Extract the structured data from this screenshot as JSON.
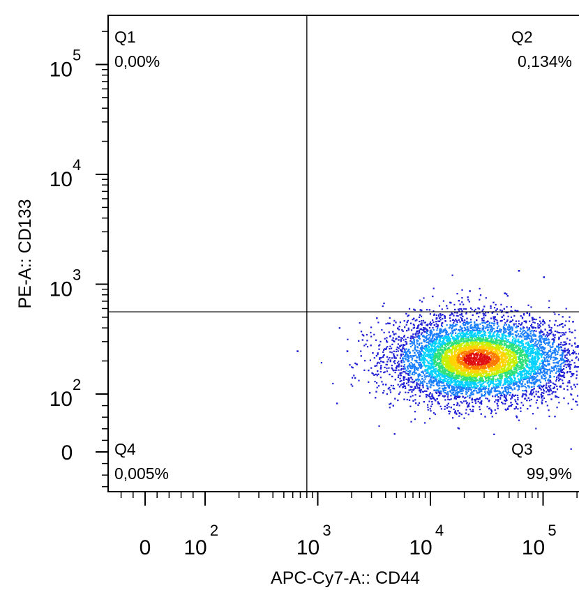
{
  "chart_data": {
    "type": "scatter",
    "subtype": "flow-cytometry-pseudocolor-density",
    "xlabel": "APC-Cy7-A:: CD44",
    "ylabel": "PE-A:: CD133",
    "x_scale": "biexponential",
    "y_scale": "biexponential",
    "x_ticks": [
      {
        "value": 0,
        "base": "0",
        "exp": ""
      },
      {
        "value": 100,
        "base": "10",
        "exp": "2"
      },
      {
        "value": 1000,
        "base": "10",
        "exp": "3"
      },
      {
        "value": 10000,
        "base": "10",
        "exp": "4"
      },
      {
        "value": 100000,
        "base": "10",
        "exp": "5"
      }
    ],
    "y_ticks": [
      {
        "value": 0,
        "base": "0",
        "exp": ""
      },
      {
        "value": 100,
        "base": "10",
        "exp": "2"
      },
      {
        "value": 1000,
        "base": "10",
        "exp": "3"
      },
      {
        "value": 10000,
        "base": "10",
        "exp": "4"
      },
      {
        "value": 100000,
        "base": "10",
        "exp": "5"
      }
    ],
    "gate": {
      "x": 800,
      "y": 560
    },
    "quadrants": [
      {
        "name": "Q1",
        "percent": "0,00%",
        "position": "top-left"
      },
      {
        "name": "Q2",
        "percent": "0,134%",
        "position": "top-right"
      },
      {
        "name": "Q3",
        "percent": "99,9%",
        "position": "bottom-right"
      },
      {
        "name": "Q4",
        "percent": "0,005%",
        "position": "bottom-left"
      }
    ],
    "population": {
      "center_x": 25000,
      "center_y": 210,
      "x_range": [
        4000,
        160000
      ],
      "y_range": [
        75,
        550
      ],
      "approx_events": 9000
    },
    "outliers": [
      {
        "x": 650,
        "y": 250
      },
      {
        "x": 1800,
        "y": 250
      },
      {
        "x": 60000,
        "y": 1350
      },
      {
        "x": 100000,
        "y": 1180
      },
      {
        "x": 22000,
        "y": 880
      },
      {
        "x": 45000,
        "y": 840
      }
    ],
    "colormap": [
      "#1f1fd6",
      "#1a7fff",
      "#00d2ff",
      "#2de07a",
      "#c8f000",
      "#ffd200",
      "#ff7a00",
      "#e01010"
    ],
    "grid": false,
    "legend": "none"
  }
}
